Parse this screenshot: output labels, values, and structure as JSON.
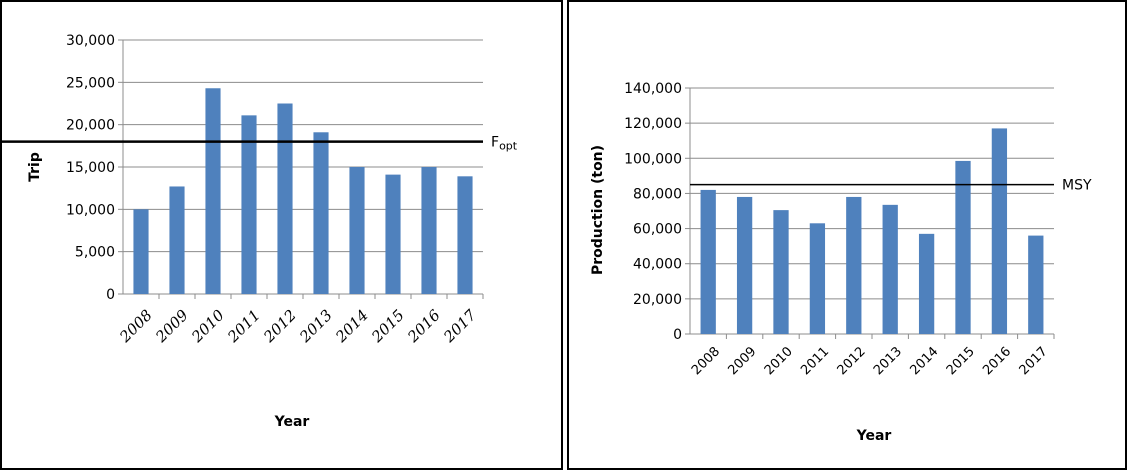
{
  "chart_data": [
    {
      "type": "bar",
      "title": "",
      "xlabel": "Year",
      "ylabel": "Trip",
      "categories": [
        "2008",
        "2009",
        "2010",
        "2011",
        "2012",
        "2013",
        "2014",
        "2015",
        "2016",
        "2017"
      ],
      "values": [
        10000,
        12700,
        24300,
        21100,
        22500,
        19100,
        15000,
        14100,
        15000,
        13900
      ],
      "ylim": [
        0,
        30000
      ],
      "yticks": [
        "0",
        "5,000",
        "10,000",
        "15,000",
        "20,000",
        "25,000",
        "30,000"
      ],
      "grid": true,
      "bar_color": "#4f81bd",
      "reference_line": {
        "label": "Fopt",
        "label_main": "F",
        "label_sub": "opt",
        "value": 18000
      }
    },
    {
      "type": "bar",
      "title": "",
      "xlabel": "Year",
      "ylabel": "Production (ton)",
      "categories": [
        "2008",
        "2009",
        "2010",
        "2011",
        "2012",
        "2013",
        "2014",
        "2015",
        "2016",
        "2017"
      ],
      "values": [
        82000,
        78000,
        70500,
        63000,
        78000,
        73500,
        57000,
        98500,
        117000,
        56000
      ],
      "ylim": [
        0,
        140000
      ],
      "yticks": [
        "0",
        "20,000",
        "40,000",
        "60,000",
        "80,000",
        "100,000",
        "120,000",
        "140,000"
      ],
      "grid": true,
      "bar_color": "#4f81bd",
      "reference_line": {
        "label": "MSY",
        "value": 85000
      }
    }
  ]
}
